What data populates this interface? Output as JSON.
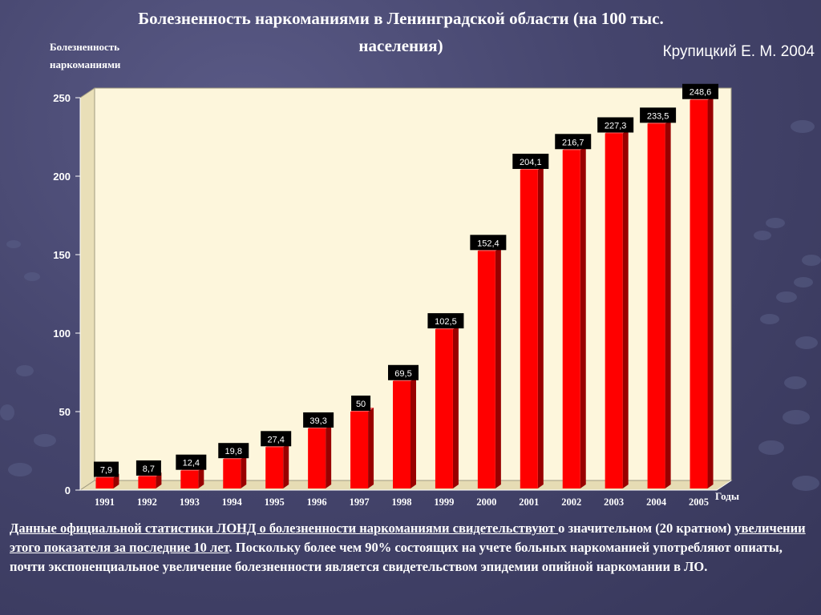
{
  "title": "Болезненность наркоманиями в Ленинградской области (на 100 тыс. населения)",
  "author": "Крупицкий Е. М. 2004",
  "caption": {
    "part1": "Данные официальной статистики ЛОНД о болезненности  наркоманиями свидетельствуют ",
    "part2": "о значительном (20 кратном) ",
    "part3": "увеличении  этого показателя за последние 10 лет",
    "part4": ". Поскольку более чем 90% состоящих на учете больных наркоманией употребляют опиаты, почти экспоненциальное увеличение болезненности является свидетельством  эпидемии опийной наркомании в ЛО."
  },
  "chart_data": {
    "type": "bar",
    "title": "Болезненность наркоманиями в Ленинградской области (на 100 тыс. населения)",
    "ylabel": "Болезненность наркоманиями",
    "xlabel": "Годы",
    "categories": [
      "1991",
      "1992",
      "1993",
      "1994",
      "1995",
      "1996",
      "1997",
      "1998",
      "1999",
      "2000",
      "2001",
      "2002",
      "2003",
      "2004",
      "2005"
    ],
    "values": [
      7.9,
      8.7,
      12.4,
      19.8,
      27.4,
      39.3,
      50,
      69.5,
      102.5,
      152.4,
      204.1,
      216.7,
      227.3,
      233.5,
      248.6
    ],
    "value_labels": [
      "7,9",
      "8,7",
      "12,4",
      "19,8",
      "27,4",
      "39,3",
      "50",
      "69,5",
      "102,5",
      "152,4",
      "204,1",
      "216,7",
      "227,3",
      "233,5",
      "248,6"
    ],
    "ylim": [
      0,
      250
    ],
    "yticks": [
      "0",
      "50",
      "100",
      "150",
      "200",
      "250"
    ],
    "grid": false,
    "colors": {
      "bar": "#ff0000",
      "bar_side": "#990000",
      "plot_bg": "#fdf6dc",
      "label_bg": "#000000",
      "label_text": "#ffffff"
    }
  }
}
